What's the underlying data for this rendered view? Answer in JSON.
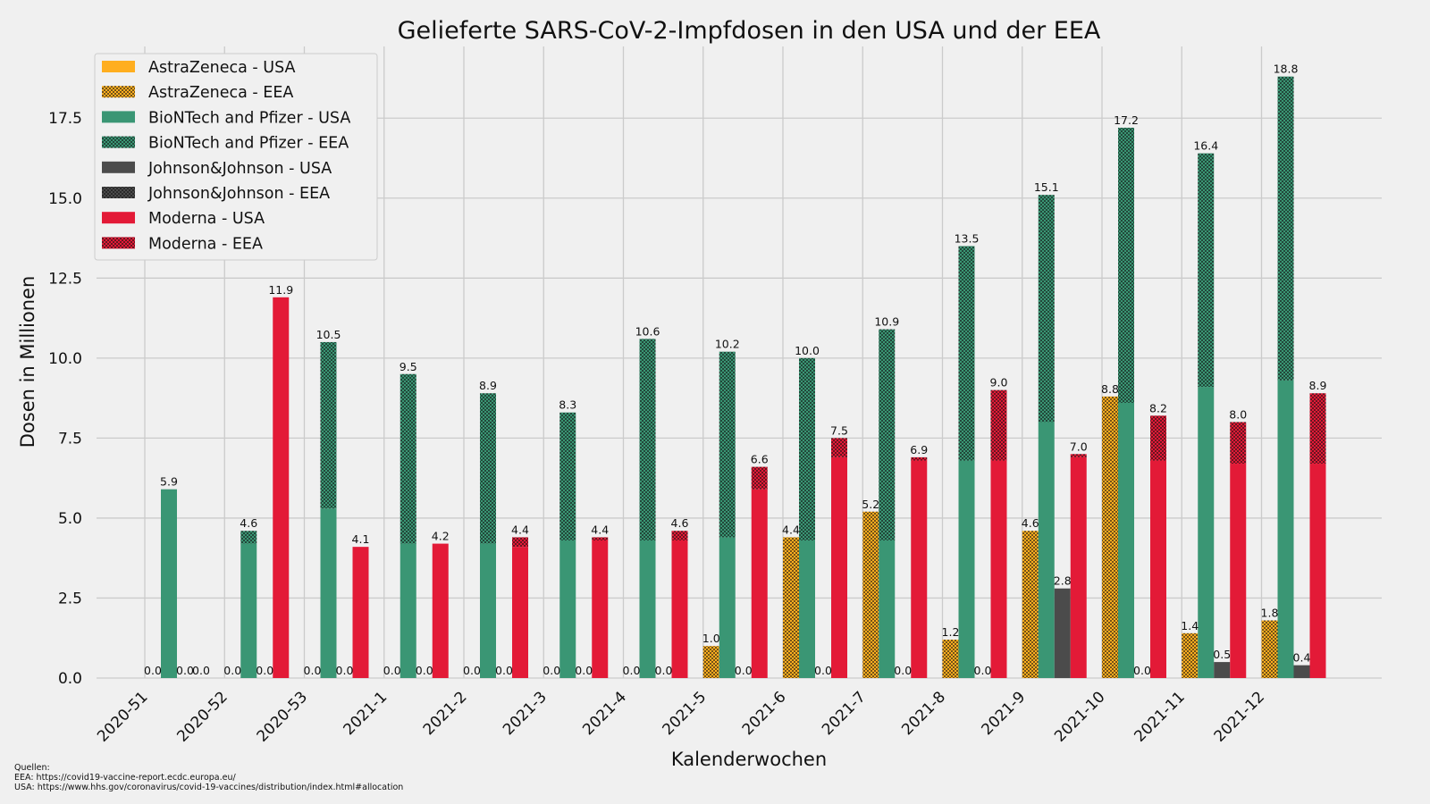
{
  "chart_data": {
    "type": "bar",
    "stacked_groups": true,
    "title": "Gelieferte SARS-CoV-2-Impfdosen in den USA und der EEA",
    "xlabel": "Kalenderwochen",
    "ylabel": "Dosen in Millionen",
    "ylim": [
      0,
      19.74
    ],
    "yticks": [
      0.0,
      2.5,
      5.0,
      7.5,
      10.0,
      12.5,
      15.0,
      17.5
    ],
    "grid": true,
    "legend_position": "top-left",
    "categories": [
      "2020-51",
      "2020-52",
      "2020-53",
      "2021-1",
      "2021-2",
      "2021-3",
      "2021-4",
      "2021-5",
      "2021-6",
      "2021-7",
      "2021-8",
      "2021-9",
      "2021-10",
      "2021-11",
      "2021-12"
    ],
    "manufacturers": [
      {
        "name": "AstraZeneca",
        "color": "#ffae1f",
        "usa": [
          0,
          0,
          0,
          0,
          0,
          0,
          0,
          0,
          0,
          0,
          0,
          0,
          0,
          0,
          0
        ],
        "eea": [
          0,
          0,
          0,
          0,
          0,
          0,
          0,
          1.0,
          4.4,
          5.2,
          1.2,
          4.6,
          8.8,
          1.4,
          1.8
        ]
      },
      {
        "name": "BioNTech and Pfizer",
        "color": "#3a9674",
        "usa": [
          5.9,
          4.2,
          5.3,
          4.2,
          4.2,
          4.3,
          4.3,
          4.4,
          4.3,
          4.3,
          6.8,
          8.0,
          8.6,
          9.1,
          9.3
        ],
        "eea": [
          0,
          0.4,
          5.2,
          5.3,
          4.7,
          4.0,
          6.3,
          5.8,
          5.7,
          6.6,
          6.7,
          7.1,
          8.6,
          7.3,
          9.5
        ]
      },
      {
        "name": "Johnson&Johnson",
        "color": "#4b4b4b",
        "usa": [
          0,
          0,
          0,
          0,
          0,
          0,
          0,
          0,
          0,
          0,
          0,
          2.8,
          0,
          0.5,
          0.4
        ],
        "eea": [
          0,
          0,
          0,
          0,
          0,
          0,
          0,
          0,
          0,
          0,
          0,
          0,
          0,
          0,
          0
        ]
      },
      {
        "name": "Moderna",
        "color": "#e31a37",
        "usa": [
          0,
          11.9,
          4.1,
          4.2,
          4.1,
          4.3,
          4.3,
          5.9,
          6.9,
          6.8,
          6.8,
          6.9,
          6.8,
          6.7,
          6.7
        ],
        "eea": [
          0,
          0,
          0,
          0,
          0.3,
          0.1,
          0.3,
          0.7,
          0.6,
          0.1,
          2.2,
          0.1,
          1.4,
          1.3,
          2.2
        ]
      }
    ],
    "legend": [
      "AstraZeneca - USA",
      "AstraZeneca - EEA",
      "BioNTech and Pfizer - USA",
      "BioNTech and Pfizer - EEA",
      "Johnson&Johnson - USA",
      "Johnson&Johnson - EEA",
      "Moderna - USA",
      "Moderna - EEA"
    ]
  },
  "sources": {
    "heading": "Quellen:",
    "eea": "EEA: https://covid19-vaccine-report.ecdc.europa.eu/",
    "usa": "USA: https://www.hhs.gov/coronavirus/covid-19-vaccines/distribution/index.html#allocation"
  }
}
